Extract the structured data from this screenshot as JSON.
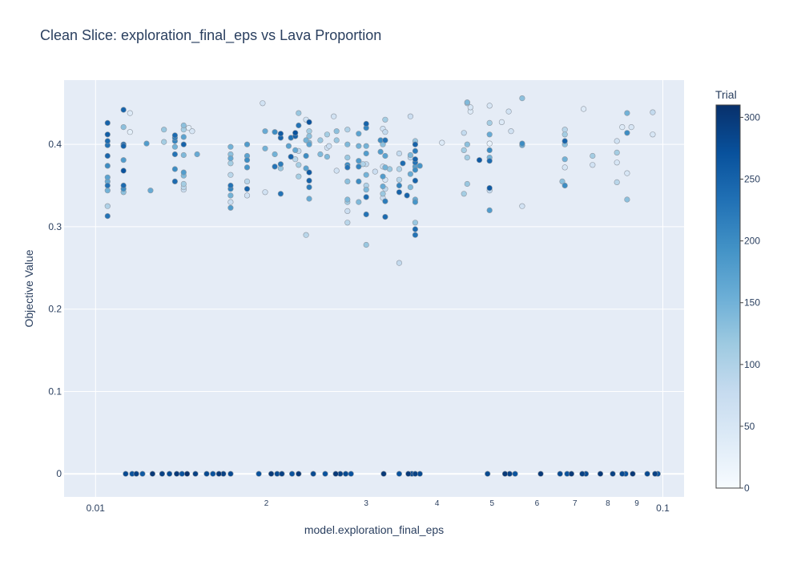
{
  "chart_data": {
    "type": "scatter",
    "title": "Clean Slice: exploration_final_eps vs Lava Proportion",
    "xlabel": "model.exploration_final_eps",
    "ylabel": "Objective Value",
    "x_scale": "log",
    "xlim": [
      0.0088,
      0.109
    ],
    "ylim": [
      -0.028,
      0.478
    ],
    "x_major_ticks": [
      {
        "value": 0.01,
        "label": "0.01"
      },
      {
        "value": 0.1,
        "label": "0.1"
      }
    ],
    "x_minor_ticks": [
      {
        "value": 0.02,
        "label": "2"
      },
      {
        "value": 0.03,
        "label": "3"
      },
      {
        "value": 0.04,
        "label": "4"
      },
      {
        "value": 0.05,
        "label": "5"
      },
      {
        "value": 0.06,
        "label": "6"
      },
      {
        "value": 0.07,
        "label": "7"
      },
      {
        "value": 0.08,
        "label": "8"
      },
      {
        "value": 0.09,
        "label": "9"
      }
    ],
    "y_ticks": [
      {
        "value": 0,
        "label": "0"
      },
      {
        "value": 0.1,
        "label": "0.1"
      },
      {
        "value": 0.2,
        "label": "0.2"
      },
      {
        "value": 0.3,
        "label": "0.3"
      },
      {
        "value": 0.4,
        "label": "0.4"
      }
    ],
    "grid": true,
    "colorbar": {
      "title": "Trial",
      "range": [
        0,
        310
      ],
      "ticks": [
        "0",
        "50",
        "100",
        "150",
        "200",
        "250",
        "300"
      ],
      "colorscale": [
        "#f7fbff",
        "#deebf7",
        "#c6dbef",
        "#9ecae1",
        "#6baed6",
        "#4292c6",
        "#2171b5",
        "#08519c",
        "#08306b"
      ]
    },
    "points": [
      [
        0.0105,
        0.426,
        250
      ],
      [
        0.0105,
        0.412,
        255
      ],
      [
        0.0105,
        0.404,
        240
      ],
      [
        0.0105,
        0.399,
        230
      ],
      [
        0.0105,
        0.386,
        245
      ],
      [
        0.0105,
        0.374,
        200
      ],
      [
        0.0105,
        0.36,
        170
      ],
      [
        0.0105,
        0.355,
        160
      ],
      [
        0.0105,
        0.35,
        230
      ],
      [
        0.0105,
        0.344,
        150
      ],
      [
        0.0105,
        0.325,
        100
      ],
      [
        0.0105,
        0.313,
        230
      ],
      [
        0.0112,
        0.442,
        250
      ],
      [
        0.0112,
        0.421,
        130
      ],
      [
        0.0112,
        0.4,
        240
      ],
      [
        0.0112,
        0.398,
        250
      ],
      [
        0.0112,
        0.381,
        180
      ],
      [
        0.0112,
        0.368,
        270
      ],
      [
        0.0112,
        0.35,
        240
      ],
      [
        0.0112,
        0.346,
        200
      ],
      [
        0.0112,
        0.342,
        130
      ],
      [
        0.0115,
        0.438,
        40
      ],
      [
        0.0115,
        0.415,
        30
      ],
      [
        0.0123,
        0.401,
        180
      ],
      [
        0.0125,
        0.344,
        160
      ],
      [
        0.0132,
        0.418,
        120
      ],
      [
        0.0132,
        0.403,
        110
      ],
      [
        0.0138,
        0.411,
        240
      ],
      [
        0.0138,
        0.408,
        220
      ],
      [
        0.0138,
        0.404,
        210
      ],
      [
        0.0138,
        0.397,
        150
      ],
      [
        0.0138,
        0.388,
        230
      ],
      [
        0.0138,
        0.37,
        200
      ],
      [
        0.0138,
        0.355,
        240
      ],
      [
        0.0143,
        0.423,
        130
      ],
      [
        0.0143,
        0.418,
        110
      ],
      [
        0.0143,
        0.409,
        170
      ],
      [
        0.0143,
        0.4,
        250
      ],
      [
        0.0143,
        0.387,
        140
      ],
      [
        0.0143,
        0.366,
        180
      ],
      [
        0.0143,
        0.362,
        140
      ],
      [
        0.0143,
        0.352,
        110
      ],
      [
        0.0143,
        0.348,
        90
      ],
      [
        0.0143,
        0.345,
        70
      ],
      [
        0.0146,
        0.42,
        30
      ],
      [
        0.0148,
        0.416,
        50
      ],
      [
        0.0151,
        0.388,
        160
      ],
      [
        0.0173,
        0.397,
        150
      ],
      [
        0.0173,
        0.388,
        130
      ],
      [
        0.0173,
        0.383,
        160
      ],
      [
        0.0173,
        0.377,
        110
      ],
      [
        0.0173,
        0.363,
        90
      ],
      [
        0.0173,
        0.35,
        230
      ],
      [
        0.0173,
        0.346,
        210
      ],
      [
        0.0173,
        0.338,
        150
      ],
      [
        0.0173,
        0.33,
        70
      ],
      [
        0.0173,
        0.323,
        180
      ],
      [
        0.0185,
        0.4,
        180
      ],
      [
        0.0185,
        0.386,
        170
      ],
      [
        0.0185,
        0.381,
        200
      ],
      [
        0.0185,
        0.372,
        190
      ],
      [
        0.0185,
        0.355,
        90
      ],
      [
        0.0185,
        0.346,
        250
      ],
      [
        0.0185,
        0.338,
        60
      ],
      [
        0.0197,
        0.45,
        60
      ],
      [
        0.0199,
        0.416,
        160
      ],
      [
        0.0199,
        0.395,
        150
      ],
      [
        0.0199,
        0.342,
        60
      ],
      [
        0.0207,
        0.415,
        200
      ],
      [
        0.0207,
        0.388,
        150
      ],
      [
        0.0207,
        0.373,
        230
      ],
      [
        0.0212,
        0.413,
        260
      ],
      [
        0.0212,
        0.408,
        250
      ],
      [
        0.0212,
        0.376,
        220
      ],
      [
        0.0212,
        0.371,
        120
      ],
      [
        0.0212,
        0.34,
        230
      ],
      [
        0.0219,
        0.398,
        170
      ],
      [
        0.0221,
        0.408,
        230
      ],
      [
        0.0221,
        0.385,
        250
      ],
      [
        0.0225,
        0.414,
        270
      ],
      [
        0.0225,
        0.41,
        250
      ],
      [
        0.0225,
        0.393,
        160
      ],
      [
        0.0225,
        0.382,
        90
      ],
      [
        0.0228,
        0.438,
        120
      ],
      [
        0.0228,
        0.423,
        230
      ],
      [
        0.0228,
        0.392,
        80
      ],
      [
        0.0228,
        0.375,
        110
      ],
      [
        0.0228,
        0.361,
        110
      ],
      [
        0.0235,
        0.43,
        60
      ],
      [
        0.0235,
        0.405,
        150
      ],
      [
        0.0235,
        0.386,
        200
      ],
      [
        0.0235,
        0.371,
        170
      ],
      [
        0.0235,
        0.29,
        90
      ],
      [
        0.0238,
        0.427,
        270
      ],
      [
        0.0238,
        0.416,
        110
      ],
      [
        0.0238,
        0.41,
        130
      ],
      [
        0.0238,
        0.402,
        140
      ],
      [
        0.0238,
        0.4,
        170
      ],
      [
        0.0238,
        0.366,
        260
      ],
      [
        0.0238,
        0.356,
        250
      ],
      [
        0.0238,
        0.348,
        220
      ],
      [
        0.0238,
        0.334,
        160
      ],
      [
        0.0249,
        0.405,
        120
      ],
      [
        0.0249,
        0.388,
        140
      ],
      [
        0.0256,
        0.412,
        110
      ],
      [
        0.0256,
        0.396,
        60
      ],
      [
        0.0256,
        0.385,
        140
      ],
      [
        0.0258,
        0.398,
        70
      ],
      [
        0.0263,
        0.434,
        60
      ],
      [
        0.0266,
        0.416,
        130
      ],
      [
        0.0266,
        0.405,
        120
      ],
      [
        0.0266,
        0.368,
        60
      ],
      [
        0.0278,
        0.418,
        100
      ],
      [
        0.0278,
        0.4,
        140
      ],
      [
        0.0278,
        0.384,
        120
      ],
      [
        0.0278,
        0.375,
        200
      ],
      [
        0.0278,
        0.372,
        230
      ],
      [
        0.0278,
        0.355,
        130
      ],
      [
        0.0278,
        0.333,
        140
      ],
      [
        0.0278,
        0.33,
        110
      ],
      [
        0.0278,
        0.319,
        70
      ],
      [
        0.0278,
        0.305,
        90
      ],
      [
        0.0291,
        0.413,
        170
      ],
      [
        0.0291,
        0.398,
        150
      ],
      [
        0.0291,
        0.38,
        180
      ],
      [
        0.0291,
        0.373,
        210
      ],
      [
        0.0291,
        0.355,
        200
      ],
      [
        0.0291,
        0.33,
        140
      ],
      [
        0.0296,
        0.376,
        100
      ],
      [
        0.03,
        0.425,
        250
      ],
      [
        0.03,
        0.42,
        210
      ],
      [
        0.03,
        0.398,
        150
      ],
      [
        0.03,
        0.389,
        180
      ],
      [
        0.03,
        0.376,
        80
      ],
      [
        0.03,
        0.363,
        150
      ],
      [
        0.03,
        0.35,
        100
      ],
      [
        0.03,
        0.345,
        140
      ],
      [
        0.03,
        0.336,
        240
      ],
      [
        0.03,
        0.315,
        230
      ],
      [
        0.03,
        0.278,
        120
      ],
      [
        0.0311,
        0.367,
        70
      ],
      [
        0.0318,
        0.405,
        200
      ],
      [
        0.0318,
        0.391,
        180
      ],
      [
        0.0321,
        0.419,
        60
      ],
      [
        0.0321,
        0.403,
        40
      ],
      [
        0.0321,
        0.4,
        130
      ],
      [
        0.0321,
        0.373,
        60
      ],
      [
        0.0321,
        0.361,
        180
      ],
      [
        0.0321,
        0.349,
        160
      ],
      [
        0.0321,
        0.34,
        120
      ],
      [
        0.0321,
        0.335,
        70
      ],
      [
        0.0324,
        0.43,
        110
      ],
      [
        0.0324,
        0.415,
        80
      ],
      [
        0.0324,
        0.405,
        230
      ],
      [
        0.0324,
        0.386,
        170
      ],
      [
        0.0324,
        0.372,
        150
      ],
      [
        0.0324,
        0.357,
        50
      ],
      [
        0.0324,
        0.346,
        80
      ],
      [
        0.0324,
        0.331,
        220
      ],
      [
        0.0324,
        0.312,
        240
      ],
      [
        0.033,
        0.37,
        120
      ],
      [
        0.0343,
        0.389,
        80
      ],
      [
        0.0343,
        0.37,
        100
      ],
      [
        0.0343,
        0.357,
        90
      ],
      [
        0.0343,
        0.35,
        210
      ],
      [
        0.0343,
        0.342,
        250
      ],
      [
        0.0343,
        0.256,
        80
      ],
      [
        0.0348,
        0.377,
        240
      ],
      [
        0.0354,
        0.338,
        250
      ],
      [
        0.0359,
        0.434,
        70
      ],
      [
        0.0359,
        0.387,
        140
      ],
      [
        0.0359,
        0.384,
        80
      ],
      [
        0.0359,
        0.364,
        160
      ],
      [
        0.0359,
        0.348,
        140
      ],
      [
        0.0366,
        0.404,
        120
      ],
      [
        0.0366,
        0.4,
        250
      ],
      [
        0.0366,
        0.392,
        220
      ],
      [
        0.0366,
        0.382,
        250
      ],
      [
        0.0366,
        0.378,
        230
      ],
      [
        0.0366,
        0.373,
        180
      ],
      [
        0.0366,
        0.369,
        200
      ],
      [
        0.0366,
        0.356,
        250
      ],
      [
        0.0366,
        0.333,
        160
      ],
      [
        0.0366,
        0.33,
        190
      ],
      [
        0.0366,
        0.305,
        120
      ],
      [
        0.0366,
        0.297,
        240
      ],
      [
        0.0366,
        0.29,
        230
      ],
      [
        0.0373,
        0.374,
        190
      ],
      [
        0.0408,
        0.402,
        40
      ],
      [
        0.0446,
        0.414,
        80
      ],
      [
        0.0446,
        0.393,
        110
      ],
      [
        0.0446,
        0.34,
        110
      ],
      [
        0.0452,
        0.451,
        140
      ],
      [
        0.0452,
        0.45,
        100
      ],
      [
        0.0452,
        0.4,
        130
      ],
      [
        0.0452,
        0.384,
        110
      ],
      [
        0.0452,
        0.352,
        120
      ],
      [
        0.0458,
        0.445,
        50
      ],
      [
        0.0458,
        0.44,
        40
      ],
      [
        0.0475,
        0.381,
        260
      ],
      [
        0.0495,
        0.447,
        50
      ],
      [
        0.0495,
        0.426,
        110
      ],
      [
        0.0495,
        0.412,
        160
      ],
      [
        0.0495,
        0.401,
        20
      ],
      [
        0.0495,
        0.393,
        200
      ],
      [
        0.0495,
        0.384,
        150
      ],
      [
        0.0495,
        0.38,
        240
      ],
      [
        0.0495,
        0.347,
        260
      ],
      [
        0.0495,
        0.344,
        80
      ],
      [
        0.0495,
        0.32,
        180
      ],
      [
        0.052,
        0.427,
        40
      ],
      [
        0.0535,
        0.44,
        60
      ],
      [
        0.054,
        0.416,
        60
      ],
      [
        0.0565,
        0.456,
        130
      ],
      [
        0.0565,
        0.401,
        200
      ],
      [
        0.0565,
        0.399,
        160
      ],
      [
        0.0565,
        0.325,
        60
      ],
      [
        0.0665,
        0.355,
        130
      ],
      [
        0.0672,
        0.418,
        90
      ],
      [
        0.0672,
        0.404,
        250
      ],
      [
        0.0672,
        0.4,
        130
      ],
      [
        0.0672,
        0.412,
        110
      ],
      [
        0.0672,
        0.382,
        150
      ],
      [
        0.0672,
        0.372,
        50
      ],
      [
        0.0672,
        0.35,
        200
      ],
      [
        0.0725,
        0.443,
        40
      ],
      [
        0.0752,
        0.386,
        110
      ],
      [
        0.0752,
        0.375,
        60
      ],
      [
        0.083,
        0.404,
        60
      ],
      [
        0.083,
        0.39,
        110
      ],
      [
        0.083,
        0.378,
        50
      ],
      [
        0.083,
        0.354,
        90
      ],
      [
        0.0848,
        0.421,
        40
      ],
      [
        0.0865,
        0.438,
        150
      ],
      [
        0.0865,
        0.414,
        200
      ],
      [
        0.0865,
        0.365,
        50
      ],
      [
        0.0865,
        0.333,
        130
      ],
      [
        0.088,
        0.421,
        50
      ],
      [
        0.096,
        0.439,
        80
      ],
      [
        0.096,
        0.412,
        50
      ],
      [
        0.0113,
        0,
        280
      ],
      [
        0.0116,
        0,
        270
      ],
      [
        0.0118,
        0,
        290
      ],
      [
        0.0121,
        0,
        260
      ],
      [
        0.0126,
        0,
        300
      ],
      [
        0.0131,
        0,
        290
      ],
      [
        0.0135,
        0,
        280
      ],
      [
        0.0139,
        0,
        300
      ],
      [
        0.0142,
        0,
        270
      ],
      [
        0.0145,
        0,
        310
      ],
      [
        0.015,
        0,
        290
      ],
      [
        0.0157,
        0,
        280
      ],
      [
        0.0161,
        0,
        270
      ],
      [
        0.0165,
        0,
        300
      ],
      [
        0.0168,
        0,
        290
      ],
      [
        0.0173,
        0,
        280
      ],
      [
        0.0194,
        0,
        270
      ],
      [
        0.0204,
        0,
        300
      ],
      [
        0.0209,
        0,
        280
      ],
      [
        0.0213,
        0,
        290
      ],
      [
        0.0222,
        0,
        270
      ],
      [
        0.0228,
        0,
        300
      ],
      [
        0.0242,
        0,
        280
      ],
      [
        0.0254,
        0,
        270
      ],
      [
        0.0265,
        0,
        300
      ],
      [
        0.027,
        0,
        290
      ],
      [
        0.0276,
        0,
        280
      ],
      [
        0.0282,
        0,
        270
      ],
      [
        0.0322,
        0,
        300
      ],
      [
        0.0343,
        0,
        270
      ],
      [
        0.0356,
        0,
        300
      ],
      [
        0.0361,
        0,
        280
      ],
      [
        0.0366,
        0,
        290
      ],
      [
        0.0373,
        0,
        280
      ],
      [
        0.0491,
        0,
        280
      ],
      [
        0.0527,
        0,
        300
      ],
      [
        0.0537,
        0,
        290
      ],
      [
        0.0549,
        0,
        270
      ],
      [
        0.0609,
        0,
        300
      ],
      [
        0.0659,
        0,
        280
      ],
      [
        0.0678,
        0,
        270
      ],
      [
        0.069,
        0,
        300
      ],
      [
        0.0721,
        0,
        290
      ],
      [
        0.0732,
        0,
        280
      ],
      [
        0.0776,
        0,
        300
      ],
      [
        0.0816,
        0,
        290
      ],
      [
        0.0848,
        0,
        280
      ],
      [
        0.086,
        0,
        270
      ],
      [
        0.0885,
        0,
        300
      ],
      [
        0.0939,
        0,
        280
      ],
      [
        0.0969,
        0,
        290
      ],
      [
        0.098,
        0,
        270
      ]
    ]
  }
}
